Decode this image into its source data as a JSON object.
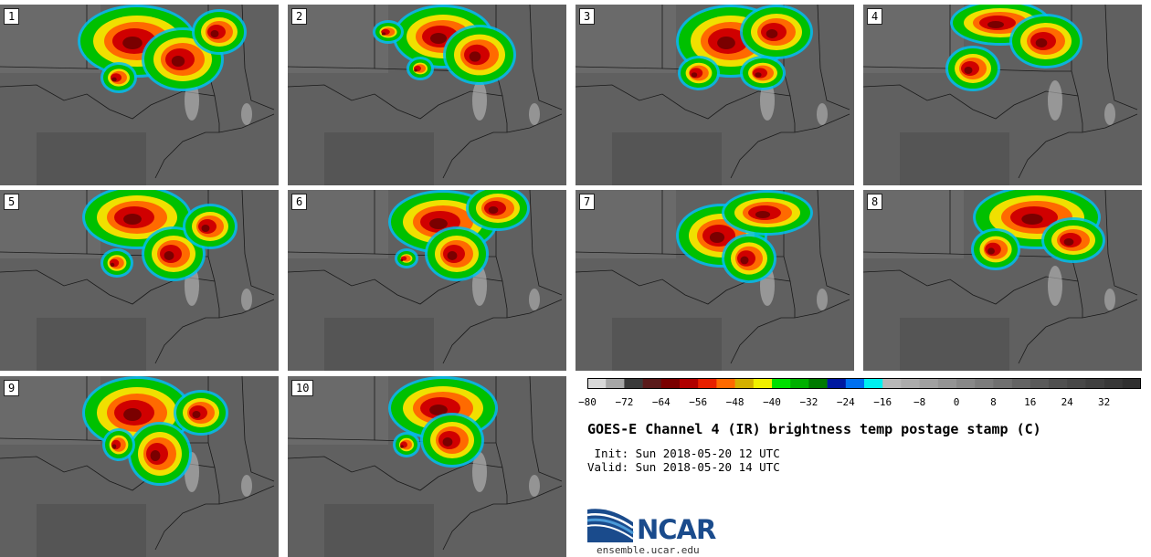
{
  "panels": [
    {
      "number": "1"
    },
    {
      "number": "2"
    },
    {
      "number": "3"
    },
    {
      "number": "4"
    },
    {
      "number": "5"
    },
    {
      "number": "6"
    },
    {
      "number": "7"
    },
    {
      "number": "8"
    },
    {
      "number": "9"
    },
    {
      "number": "10"
    }
  ],
  "colorbar": {
    "colors": [
      "#d8d8d8",
      "#a6a6a6",
      "#3a3a3a",
      "#5a1a1a",
      "#7a0000",
      "#b00000",
      "#e82000",
      "#ff6a00",
      "#d4b000",
      "#f0f000",
      "#00e000",
      "#00b000",
      "#007a00",
      "#0018a0",
      "#0070f0",
      "#00f0f0",
      "#b8b8b8",
      "#acacac",
      "#a0a0a0",
      "#949494",
      "#888888",
      "#7c7c7c",
      "#707070",
      "#646464",
      "#5a5a5a",
      "#505050",
      "#484848",
      "#404040",
      "#383838",
      "#303030"
    ],
    "tick_labels": [
      "−80",
      "−72",
      "−64",
      "−56",
      "−48",
      "−40",
      "−32",
      "−24",
      "−16",
      "−8",
      "0",
      "8",
      "16",
      "24",
      "32"
    ]
  },
  "title": "GOES-E Channel 4 (IR) brightness temp postage stamp (C)",
  "init_line": " Init: Sun 2018-05-20 12 UTC",
  "valid_line": "Valid: Sun 2018-05-20 14 UTC",
  "logo": {
    "name": "NCAR",
    "url": "ensemble.ucar.edu"
  }
}
